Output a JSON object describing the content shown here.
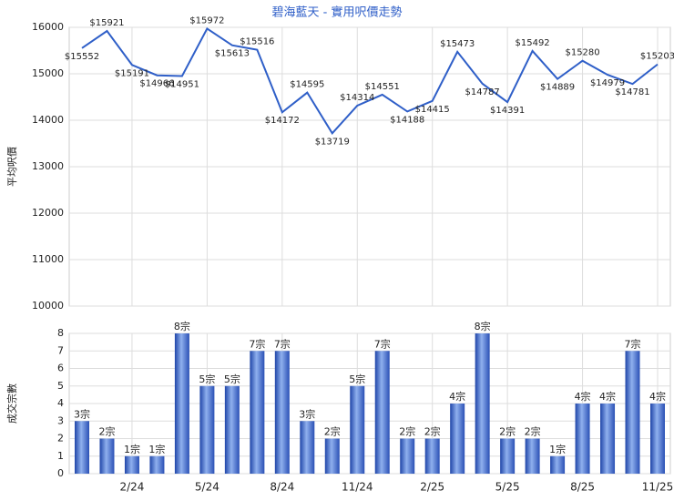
{
  "chart_data": [
    {
      "type": "line",
      "title": "碧海藍天 - 實用呎價走勢",
      "ylabel": "平均呎價",
      "color": "#2f5fc8",
      "values": [
        15552,
        15921,
        15191,
        14966,
        14951,
        15972,
        15613,
        15516,
        14172,
        14595,
        13719,
        14314,
        14551,
        14188,
        14415,
        15473,
        14787,
        14391,
        15492,
        14889,
        15280,
        14979,
        14781,
        15203
      ],
      "value_labels": [
        "$15552",
        "$15921",
        "$15191",
        "$14966",
        "$14951",
        "$15972",
        "$15613",
        "$15516",
        "$14172",
        "$14595",
        "$13719",
        "$14314",
        "$14551",
        "$14188",
        "$14415",
        "$15473",
        "$14787",
        "$14391",
        "$15492",
        "$14889",
        "$15280",
        "$14979",
        "$14781",
        "$15203"
      ],
      "ylim": [
        10000,
        16000
      ],
      "yticks": [
        10000,
        11000,
        12000,
        13000,
        14000,
        15000,
        16000
      ],
      "grid": true
    },
    {
      "type": "bar",
      "ylabel": "成交宗數",
      "color": "#3b63c8",
      "categories": [
        null,
        null,
        "2/24",
        null,
        null,
        "5/24",
        null,
        null,
        "8/24",
        null,
        null,
        "11/24",
        null,
        null,
        "2/25",
        null,
        null,
        "5/25",
        null,
        null,
        "8/25",
        null,
        null,
        "11/25"
      ],
      "values": [
        3,
        2,
        1,
        1,
        8,
        5,
        5,
        7,
        7,
        3,
        2,
        5,
        7,
        2,
        2,
        4,
        8,
        2,
        2,
        1,
        4,
        4,
        7,
        4
      ],
      "value_labels": [
        "3宗",
        "2宗",
        "1宗",
        "1宗",
        "8宗",
        "5宗",
        "5宗",
        "7宗",
        "7宗",
        "3宗",
        "2宗",
        "5宗",
        "7宗",
        "2宗",
        "2宗",
        "4宗",
        "8宗",
        "2宗",
        "2宗",
        "1宗",
        "4宗",
        "4宗",
        "7宗",
        "4宗"
      ],
      "ylim": [
        0,
        8
      ],
      "yticks": [
        0,
        1,
        2,
        3,
        4,
        5,
        6,
        7,
        8
      ],
      "grid": true
    }
  ]
}
